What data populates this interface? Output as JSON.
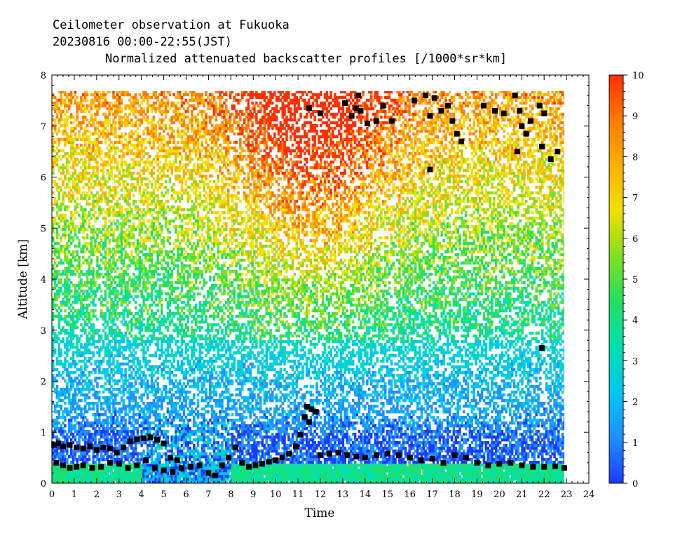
{
  "header": {
    "line1": "Ceilometer observation at Fukuoka",
    "line2": "20230816  00:00-22:55(JST)",
    "line3": "Normalized attenuated backscatter profiles [/1000*sr*km]"
  },
  "chart_data": {
    "type": "heatmap",
    "title": "Normalized attenuated backscatter profiles [/1000*sr*km]",
    "xlabel": "Time",
    "ylabel": "Altitude [km]",
    "xlim": [
      0,
      24
    ],
    "ylim": [
      0,
      8
    ],
    "x_ticks": [
      "0",
      "1",
      "2",
      "3",
      "4",
      "5",
      "6",
      "7",
      "8",
      "9",
      "10",
      "11",
      "12",
      "13",
      "14",
      "15",
      "16",
      "17",
      "18",
      "19",
      "20",
      "21",
      "22",
      "23",
      "24"
    ],
    "y_ticks": [
      "0",
      "1",
      "2",
      "3",
      "4",
      "5",
      "6",
      "7",
      "8"
    ],
    "data_extent": {
      "time_end": 22.92,
      "altitude_top": 7.65
    },
    "colorbar": {
      "min": 0,
      "max": 10,
      "ticks": [
        "0",
        "1",
        "2",
        "3",
        "4",
        "5",
        "6",
        "7",
        "8",
        "9",
        "10"
      ],
      "colors": [
        "#1a3cff",
        "#1e90ff",
        "#00c8f0",
        "#00e0b0",
        "#20e060",
        "#80e020",
        "#f0e000",
        "#ffb000",
        "#ff7a00",
        "#ff3000"
      ]
    },
    "cloud_base_markers": [
      {
        "x": 0.1,
        "y": 0.75
      },
      {
        "x": 0.3,
        "y": 0.78
      },
      {
        "x": 0.5,
        "y": 0.72
      },
      {
        "x": 0.8,
        "y": 0.75
      },
      {
        "x": 1.1,
        "y": 0.7
      },
      {
        "x": 1.4,
        "y": 0.68
      },
      {
        "x": 1.7,
        "y": 0.72
      },
      {
        "x": 2.0,
        "y": 0.65
      },
      {
        "x": 2.3,
        "y": 0.7
      },
      {
        "x": 2.6,
        "y": 0.68
      },
      {
        "x": 2.9,
        "y": 0.6
      },
      {
        "x": 3.2,
        "y": 0.7
      },
      {
        "x": 3.5,
        "y": 0.82
      },
      {
        "x": 3.8,
        "y": 0.86
      },
      {
        "x": 4.1,
        "y": 0.88
      },
      {
        "x": 4.4,
        "y": 0.9
      },
      {
        "x": 4.7,
        "y": 0.85
      },
      {
        "x": 5.0,
        "y": 0.78
      },
      {
        "x": 5.3,
        "y": 0.5
      },
      {
        "x": 5.6,
        "y": 0.45
      },
      {
        "x": 0.2,
        "y": 0.4
      },
      {
        "x": 0.5,
        "y": 0.35
      },
      {
        "x": 0.8,
        "y": 0.3
      },
      {
        "x": 1.1,
        "y": 0.32
      },
      {
        "x": 1.4,
        "y": 0.35
      },
      {
        "x": 1.8,
        "y": 0.3
      },
      {
        "x": 2.2,
        "y": 0.32
      },
      {
        "x": 2.6,
        "y": 0.4
      },
      {
        "x": 3.0,
        "y": 0.38
      },
      {
        "x": 3.4,
        "y": 0.3
      },
      {
        "x": 3.8,
        "y": 0.35
      },
      {
        "x": 4.2,
        "y": 0.45
      },
      {
        "x": 4.6,
        "y": 0.3
      },
      {
        "x": 5.0,
        "y": 0.25
      },
      {
        "x": 5.4,
        "y": 0.22
      },
      {
        "x": 5.8,
        "y": 0.3
      },
      {
        "x": 6.2,
        "y": 0.32
      },
      {
        "x": 6.6,
        "y": 0.35
      },
      {
        "x": 7.0,
        "y": 0.2
      },
      {
        "x": 7.3,
        "y": 0.15
      },
      {
        "x": 7.6,
        "y": 0.35
      },
      {
        "x": 7.9,
        "y": 0.5
      },
      {
        "x": 8.2,
        "y": 0.7
      },
      {
        "x": 8.5,
        "y": 0.4
      },
      {
        "x": 8.8,
        "y": 0.32
      },
      {
        "x": 9.1,
        "y": 0.35
      },
      {
        "x": 9.4,
        "y": 0.38
      },
      {
        "x": 9.7,
        "y": 0.42
      },
      {
        "x": 10.0,
        "y": 0.45
      },
      {
        "x": 10.3,
        "y": 0.5
      },
      {
        "x": 10.6,
        "y": 0.58
      },
      {
        "x": 10.9,
        "y": 0.72
      },
      {
        "x": 11.1,
        "y": 0.95
      },
      {
        "x": 11.3,
        "y": 1.3
      },
      {
        "x": 11.4,
        "y": 1.5
      },
      {
        "x": 11.6,
        "y": 1.45
      },
      {
        "x": 11.8,
        "y": 1.4
      },
      {
        "x": 11.5,
        "y": 1.2
      },
      {
        "x": 12.0,
        "y": 0.55
      },
      {
        "x": 12.4,
        "y": 0.58
      },
      {
        "x": 12.8,
        "y": 0.6
      },
      {
        "x": 13.2,
        "y": 0.55
      },
      {
        "x": 13.6,
        "y": 0.52
      },
      {
        "x": 14.0,
        "y": 0.5
      },
      {
        "x": 14.5,
        "y": 0.55
      },
      {
        "x": 15.0,
        "y": 0.58
      },
      {
        "x": 15.5,
        "y": 0.55
      },
      {
        "x": 16.0,
        "y": 0.5
      },
      {
        "x": 16.5,
        "y": 0.45
      },
      {
        "x": 17.0,
        "y": 0.48
      },
      {
        "x": 17.5,
        "y": 0.4
      },
      {
        "x": 18.0,
        "y": 0.55
      },
      {
        "x": 18.5,
        "y": 0.5
      },
      {
        "x": 19.0,
        "y": 0.4
      },
      {
        "x": 19.5,
        "y": 0.35
      },
      {
        "x": 20.0,
        "y": 0.38
      },
      {
        "x": 20.5,
        "y": 0.4
      },
      {
        "x": 21.0,
        "y": 0.35
      },
      {
        "x": 21.5,
        "y": 0.32
      },
      {
        "x": 22.0,
        "y": 0.32
      },
      {
        "x": 22.5,
        "y": 0.33
      },
      {
        "x": 22.9,
        "y": 0.3
      },
      {
        "x": 21.9,
        "y": 2.65
      },
      {
        "x": 16.9,
        "y": 6.15
      },
      {
        "x": 11.5,
        "y": 7.35
      },
      {
        "x": 12.0,
        "y": 7.25
      },
      {
        "x": 13.1,
        "y": 7.45
      },
      {
        "x": 13.4,
        "y": 7.2
      },
      {
        "x": 13.6,
        "y": 7.35
      },
      {
        "x": 13.7,
        "y": 7.6
      },
      {
        "x": 13.8,
        "y": 7.3
      },
      {
        "x": 14.1,
        "y": 7.05
      },
      {
        "x": 14.5,
        "y": 7.1
      },
      {
        "x": 14.8,
        "y": 7.4
      },
      {
        "x": 15.2,
        "y": 7.1
      },
      {
        "x": 16.2,
        "y": 7.5
      },
      {
        "x": 16.7,
        "y": 7.6
      },
      {
        "x": 16.9,
        "y": 7.2
      },
      {
        "x": 17.1,
        "y": 7.55
      },
      {
        "x": 17.4,
        "y": 7.3
      },
      {
        "x": 17.7,
        "y": 7.4
      },
      {
        "x": 17.9,
        "y": 7.1
      },
      {
        "x": 18.1,
        "y": 6.85
      },
      {
        "x": 18.3,
        "y": 6.7
      },
      {
        "x": 19.3,
        "y": 7.4
      },
      {
        "x": 19.8,
        "y": 7.3
      },
      {
        "x": 20.2,
        "y": 7.25
      },
      {
        "x": 20.7,
        "y": 7.6
      },
      {
        "x": 20.9,
        "y": 7.3
      },
      {
        "x": 21.0,
        "y": 7.0
      },
      {
        "x": 21.2,
        "y": 6.85
      },
      {
        "x": 21.4,
        "y": 7.1
      },
      {
        "x": 21.8,
        "y": 7.4
      },
      {
        "x": 22.0,
        "y": 7.25
      },
      {
        "x": 22.3,
        "y": 6.35
      },
      {
        "x": 22.6,
        "y": 6.5
      },
      {
        "x": 21.9,
        "y": 6.6
      },
      {
        "x": 20.8,
        "y": 6.5
      }
    ]
  }
}
